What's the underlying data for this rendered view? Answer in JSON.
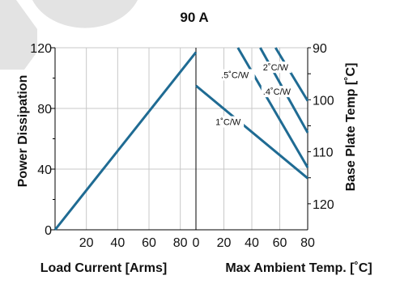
{
  "chart_data": {
    "type": "line",
    "title": "90 A",
    "colors": {
      "series": "#1f6b93",
      "grid": "#c8c8c8",
      "axis": "#000000",
      "decoration": "#e3e3e3"
    },
    "grid": true,
    "left_panel": {
      "xlabel": "Load Current [Arms]",
      "ylabel": "Power Dissipation",
      "xlim": [
        0,
        90
      ],
      "ylim": [
        0,
        120
      ],
      "x_ticks": [
        20,
        40,
        60,
        80
      ],
      "y_ticks": [
        0,
        40,
        80,
        120
      ],
      "series": [
        {
          "x": [
            0,
            90
          ],
          "y": [
            0,
            117
          ]
        }
      ]
    },
    "right_panel": {
      "xlabel": "Max Ambient Temp. [˚C]",
      "ylabel": "Base Plate Temp [˚C]",
      "xlim": [
        0,
        80
      ],
      "x_ticks": [
        0,
        20,
        40,
        60,
        80
      ],
      "y_right_ticks": [
        90,
        100,
        110,
        120
      ],
      "y_right_range": [
        90,
        125
      ],
      "series": [
        {
          "name": "1˚C/W",
          "x": [
            0,
            80
          ],
          "y": [
            95,
            34
          ]
        },
        {
          "name": ".5˚C/W",
          "x": [
            30,
            80
          ],
          "y": [
            120,
            41
          ]
        },
        {
          "name": ".4˚C/W",
          "x": [
            46,
            80
          ],
          "y": [
            120,
            64
          ]
        },
        {
          "name": "2˚C/W",
          "x": [
            57,
            80
          ],
          "y": [
            120,
            85
          ]
        }
      ],
      "annotations": [
        {
          "text": "2˚C/W",
          "x": 48,
          "y": 105
        },
        {
          "text": ".5˚C/W",
          "x": 18,
          "y": 100
        },
        {
          "text": ".4˚C/W",
          "x": 48,
          "y": 89
        },
        {
          "text": "1˚C/W",
          "x": 14,
          "y": 69
        }
      ]
    }
  }
}
